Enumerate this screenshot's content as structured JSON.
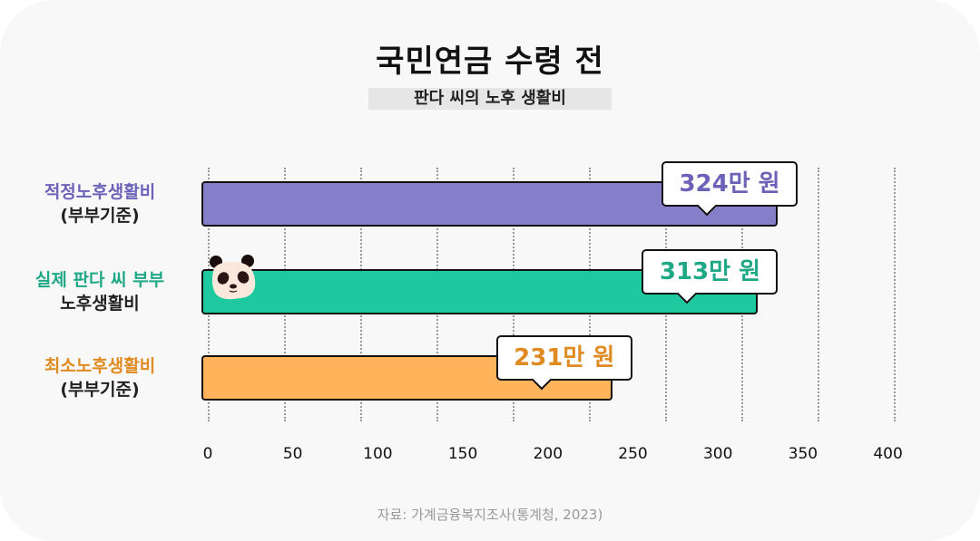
{
  "title": "국민연금 수령 전",
  "subtitle": "판다 씨의 노후 생활비",
  "chart_data": {
    "type": "bar",
    "orientation": "horizontal",
    "categories": [
      {
        "line1": "적정노후생활비",
        "line2": "(부부기준)"
      },
      {
        "line1": "실제 판다 씨 부부",
        "line2": "노후생활비"
      },
      {
        "line1": "최소노후생활비",
        "line2": "(부부기준)"
      }
    ],
    "values": [
      324,
      313,
      231
    ],
    "data_labels": [
      "324만 원",
      "313만 원",
      "231만 원"
    ],
    "colors": [
      "#857ec8",
      "#1fc9a0",
      "#ffb35a"
    ],
    "label_colors": [
      "#6c63b8",
      "#1fa886",
      "#e08a22"
    ],
    "xticks": [
      "0",
      "50",
      "100",
      "150",
      "200",
      "250",
      "300",
      "350",
      "400"
    ],
    "xlim": [
      0,
      400
    ],
    "grid": true,
    "source": "자료: 가계금융복지조사(통계청, 2023)"
  },
  "icons": {
    "panda": "panda-face-icon"
  }
}
